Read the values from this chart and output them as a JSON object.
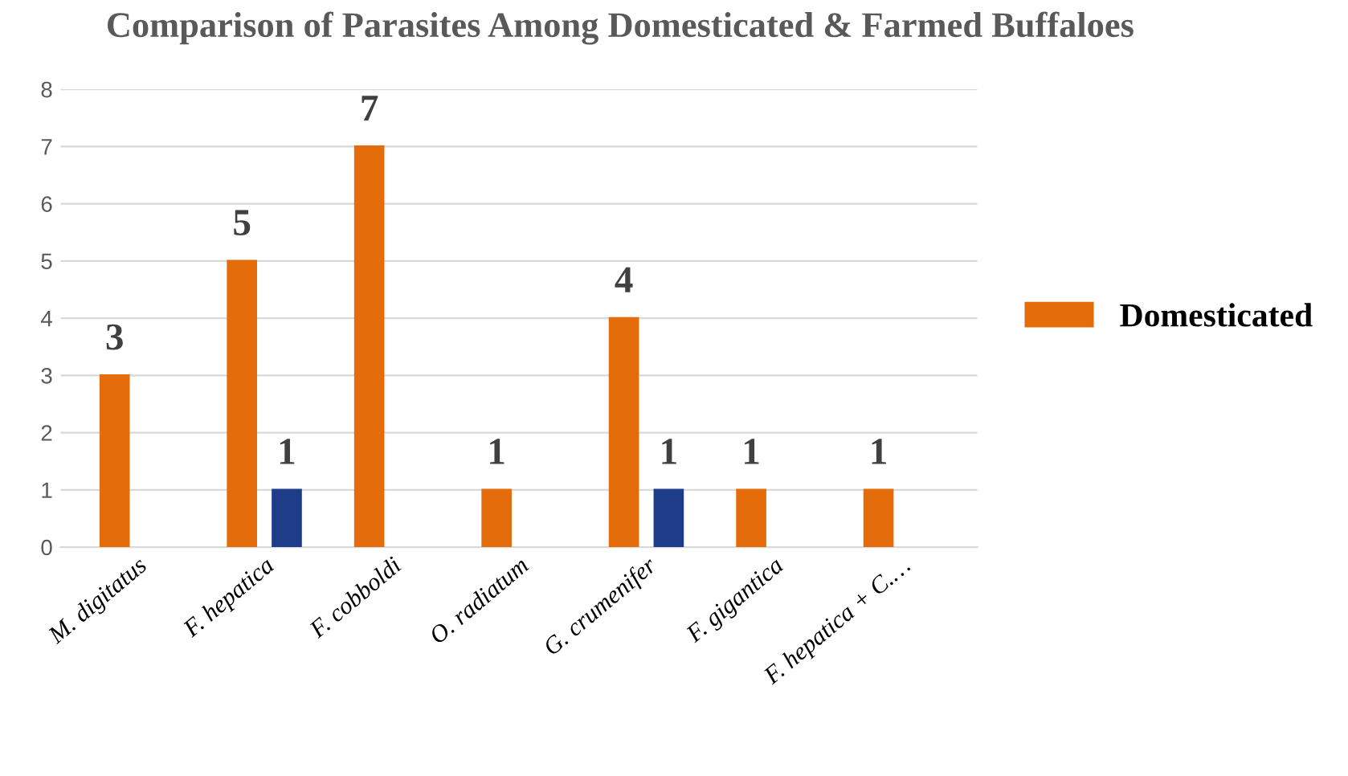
{
  "chart_data": {
    "type": "bar",
    "title": "Comparison of Parasites Among Domesticated & Farmed Buffaloes",
    "categories": [
      "M. digitatus",
      "F. hepatica",
      "F. cobboldi",
      "O. radiatum",
      "G. crumenifer",
      "F. gigantica",
      "F. hepatica + C.…"
    ],
    "series": [
      {
        "name": "Domesticated",
        "color": "#e46c0a",
        "values": [
          3,
          5,
          7,
          1,
          4,
          1,
          1
        ]
      },
      {
        "color": "#1f3c88",
        "values": [
          null,
          1,
          null,
          null,
          1,
          null,
          null
        ]
      }
    ],
    "ylim": [
      0,
      8
    ],
    "yticks": [
      0,
      1,
      2,
      3,
      4,
      5,
      6,
      7,
      8
    ],
    "grid": "y",
    "legend": "right",
    "data_labels": true
  }
}
